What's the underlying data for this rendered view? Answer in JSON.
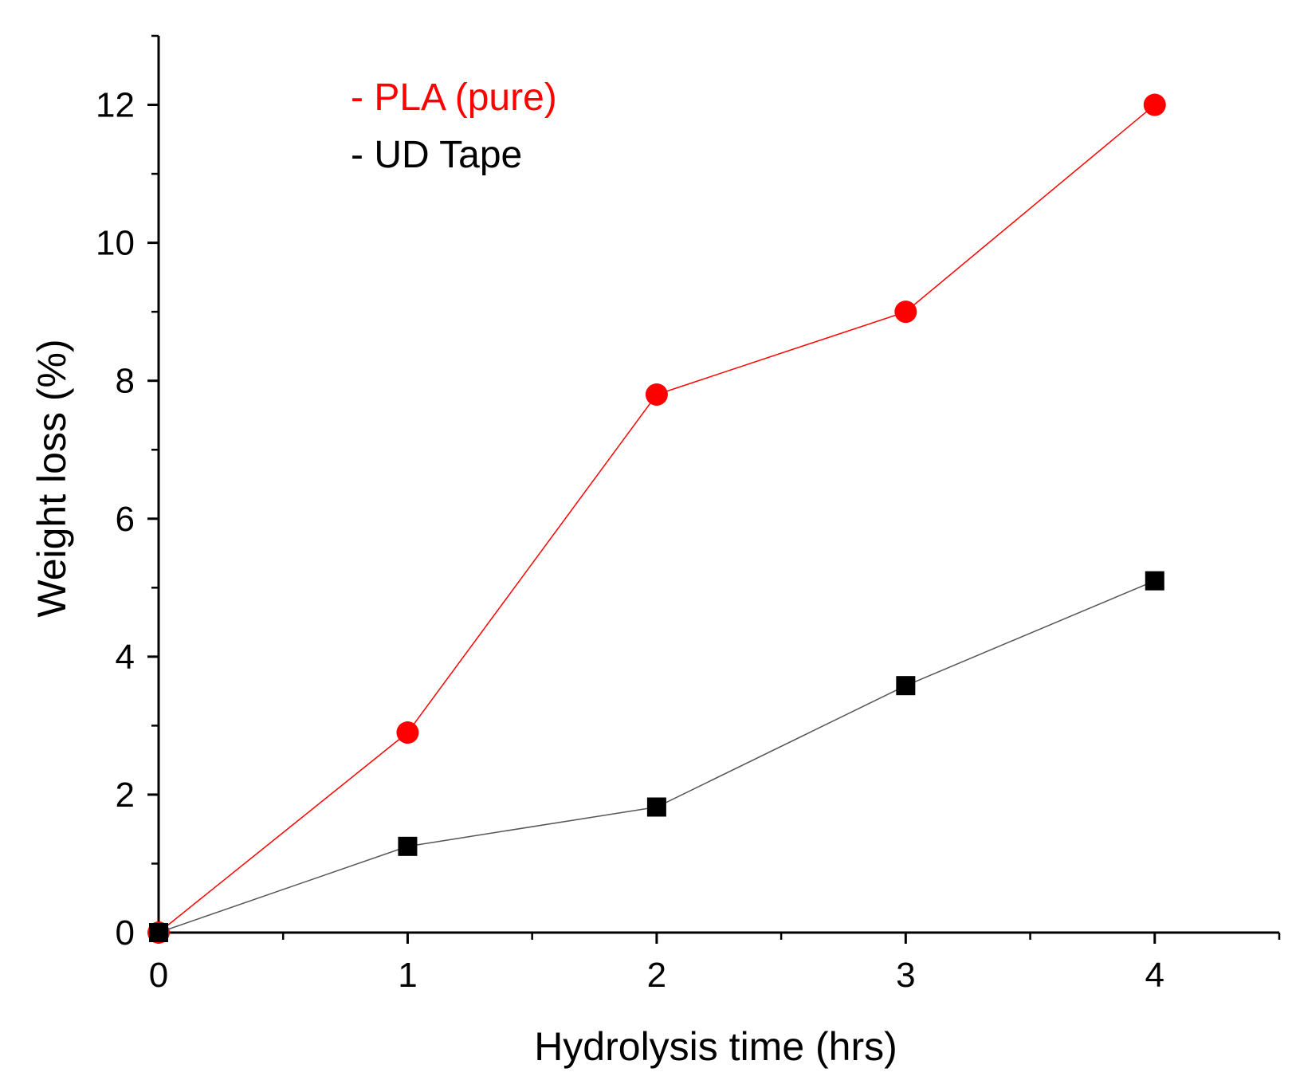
{
  "chart_data": {
    "type": "line",
    "xlabel": "Hydrolysis time (hrs)",
    "ylabel": "Weight loss (%)",
    "xlim": [
      0,
      4.5
    ],
    "ylim": [
      0,
      13
    ],
    "x_ticks": [
      0,
      1,
      2,
      3,
      4
    ],
    "x_tick_labels": [
      "0",
      "1",
      "2",
      "3",
      "4"
    ],
    "x_minor_ticks": [
      0.5,
      1.5,
      2.5,
      3.5,
      4.5
    ],
    "y_ticks": [
      0,
      2,
      4,
      6,
      8,
      10,
      12
    ],
    "y_tick_labels": [
      "0",
      "2",
      "4",
      "6",
      "8",
      "10",
      "12"
    ],
    "y_minor_ticks": [
      1,
      3,
      5,
      7,
      9,
      11,
      13
    ],
    "grid": false,
    "legend_position": "top-left",
    "series": [
      {
        "name": "- PLA (pure)",
        "color": "#ff0000",
        "marker": "circle",
        "x": [
          0,
          1,
          2,
          3,
          4
        ],
        "y": [
          0,
          2.9,
          7.8,
          9.0,
          12.0
        ]
      },
      {
        "name": "- UD Tape",
        "color": "#000000",
        "line_color": "#555555",
        "marker": "square",
        "x": [
          0,
          1,
          2,
          3,
          4
        ],
        "y": [
          0,
          1.25,
          1.82,
          3.58,
          5.1
        ]
      }
    ]
  }
}
